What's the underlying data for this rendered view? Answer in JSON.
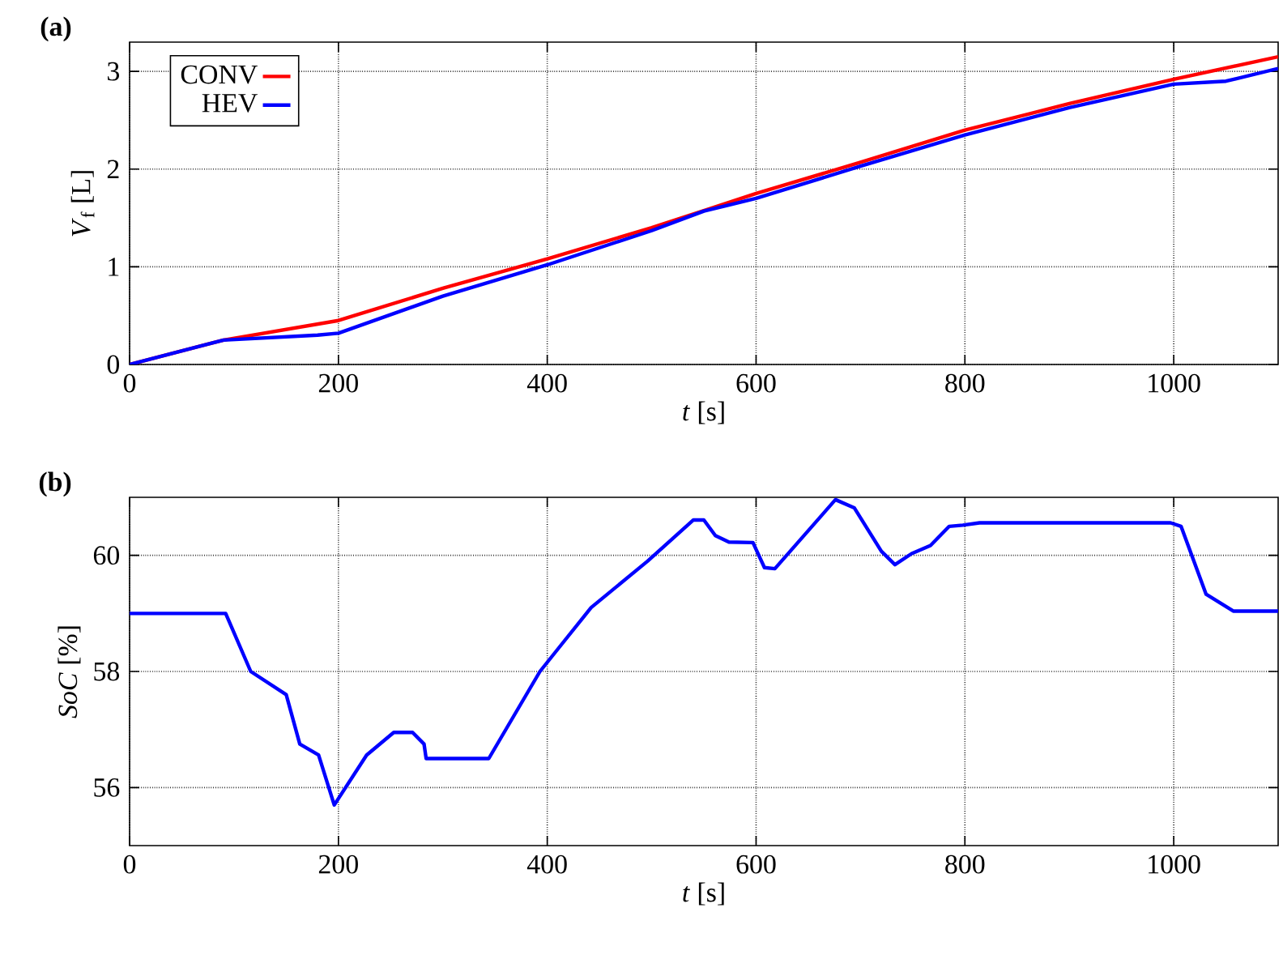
{
  "chart_data": [
    {
      "type": "line",
      "title": "(a)",
      "xlabel": "*t* [s]",
      "ylabel": "*V*$_{f}$ [L]",
      "xlim": [
        0,
        1100
      ],
      "ylim": [
        0,
        3.3
      ],
      "xticks": [
        0,
        200,
        400,
        600,
        800,
        1000
      ],
      "yticks": [
        0,
        1,
        2,
        3
      ],
      "grid": true,
      "legend": "top left",
      "series": [
        {
          "name": "CONV",
          "color": "#ff0000",
          "x": [
            0,
            90,
            200,
            300,
            400,
            500,
            600,
            700,
            800,
            900,
            1000,
            1100
          ],
          "values": [
            0,
            0.25,
            0.45,
            0.78,
            1.08,
            1.4,
            1.75,
            2.07,
            2.4,
            2.67,
            2.92,
            3.15
          ]
        },
        {
          "name": "HEV",
          "color": "#0000ff",
          "x": [
            0,
            90,
            180,
            200,
            300,
            400,
            500,
            550,
            600,
            700,
            800,
            900,
            1000,
            1050,
            1100
          ],
          "values": [
            0,
            0.25,
            0.3,
            0.32,
            0.7,
            1.02,
            1.37,
            1.57,
            1.7,
            2.03,
            2.35,
            2.63,
            2.87,
            2.9,
            3.03
          ]
        }
      ]
    },
    {
      "type": "line",
      "title": "(b)",
      "xlabel": "*t* [s]",
      "ylabel": "*SoC* [%]",
      "xlim": [
        0,
        1100
      ],
      "ylim": [
        55,
        61
      ],
      "xticks": [
        0,
        200,
        400,
        600,
        800,
        1000
      ],
      "yticks": [
        56,
        58,
        60
      ],
      "grid": true,
      "series": [
        {
          "color": "#0000ff",
          "x": [
            0,
            92,
            116,
            150,
            163,
            181,
            196,
            227,
            253,
            271,
            282,
            284,
            344,
            393,
            413,
            442,
            496,
            540,
            550,
            561,
            574,
            597,
            608,
            618,
            676,
            694,
            720,
            733,
            749,
            767,
            785,
            798,
            814,
            997,
            1007,
            1031,
            1057,
            1100
          ],
          "values": [
            59,
            59,
            58,
            57.6,
            56.75,
            56.56,
            55.7,
            56.56,
            56.95,
            56.95,
            56.75,
            56.5,
            56.5,
            58,
            58.45,
            59.1,
            59.9,
            60.61,
            60.61,
            60.34,
            60.23,
            60.22,
            59.79,
            59.77,
            60.96,
            60.82,
            60.07,
            59.84,
            60.03,
            60.17,
            60.5,
            60.52,
            60.56,
            60.56,
            60.5,
            59.33,
            59.04,
            59.04
          ]
        }
      ]
    }
  ]
}
